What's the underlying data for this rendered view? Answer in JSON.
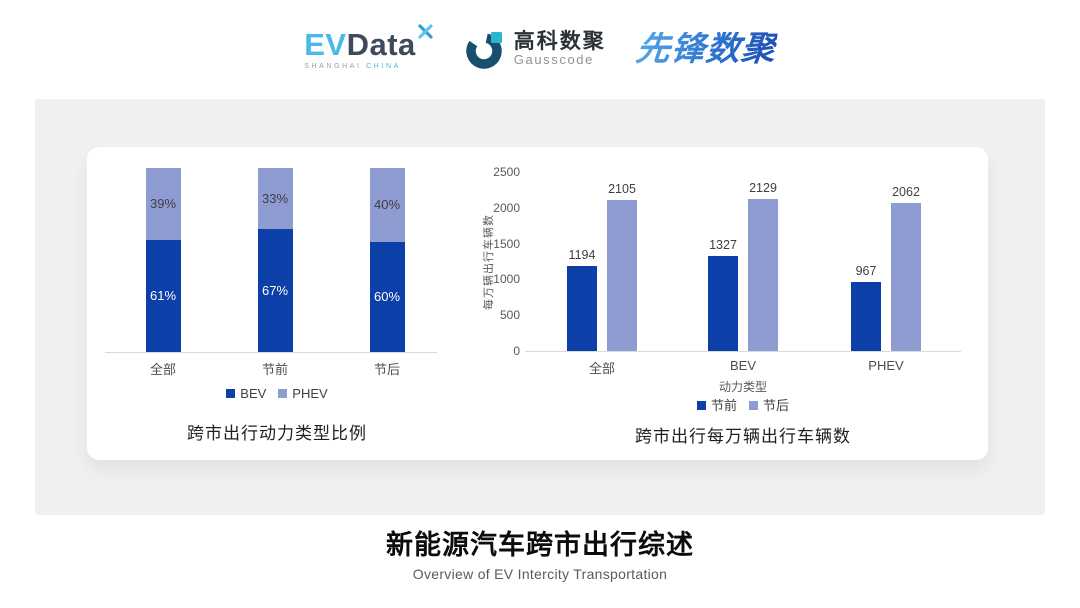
{
  "header": {
    "evdata": {
      "ev": "EV",
      "data": "Data",
      "sub_left": "SHANGHAI",
      "sub_right": "CHINA"
    },
    "gausscode": {
      "cn": "高科数聚",
      "en": "Gausscode"
    },
    "pioneer": {
      "text": "先锋数聚"
    }
  },
  "colors": {
    "bev_dark_blue": "#0d3fa8",
    "phev_light_purple": "#8e9cd2",
    "axis_gray": "#d9d9d9",
    "label_gray": "#595959",
    "panel_gray": "#f0f0f1",
    "logo_light_blue": "#49b9e8",
    "logo_dark_slate": "#3e4b5c"
  },
  "chart_data": [
    {
      "type": "bar",
      "variant": "stacked-100-percent",
      "title": "跨市出行动力类型比例",
      "categories": [
        "全部",
        "节前",
        "节后"
      ],
      "series": [
        {
          "name": "BEV",
          "color": "#0d3fa8",
          "values": [
            61,
            67,
            60
          ],
          "labels": [
            "61%",
            "67%",
            "60%"
          ],
          "label_color": "#ffffff"
        },
        {
          "name": "PHEV",
          "color": "#8e9cd2",
          "values": [
            39,
            33,
            40
          ],
          "labels": [
            "39%",
            "33%",
            "40%"
          ],
          "label_color": "#3f3f46"
        }
      ],
      "legend": [
        "BEV",
        "PHEV"
      ],
      "legend_position": "bottom",
      "grid": false,
      "ylim": [
        0,
        100
      ]
    },
    {
      "type": "bar",
      "variant": "grouped",
      "title": "跨市出行每万辆出行车辆数",
      "categories": [
        "全部",
        "BEV",
        "PHEV"
      ],
      "xlabel": "动力类型",
      "ylabel": "每万辆出行车辆数",
      "ylim": [
        0,
        2500
      ],
      "yticks": [
        0,
        500,
        1000,
        1500,
        2000,
        2500
      ],
      "series": [
        {
          "name": "节前",
          "color": "#0d3fa8",
          "values": [
            1194,
            1327,
            967
          ]
        },
        {
          "name": "节后",
          "color": "#8e9cd2",
          "values": [
            2105,
            2129,
            2062
          ]
        }
      ],
      "legend": [
        "节前",
        "节后"
      ],
      "legend_position": "bottom",
      "grid": false
    }
  ],
  "footer": {
    "title": "新能源汽车跨市出行综述",
    "subtitle": "Overview of EV Intercity Transportation"
  }
}
